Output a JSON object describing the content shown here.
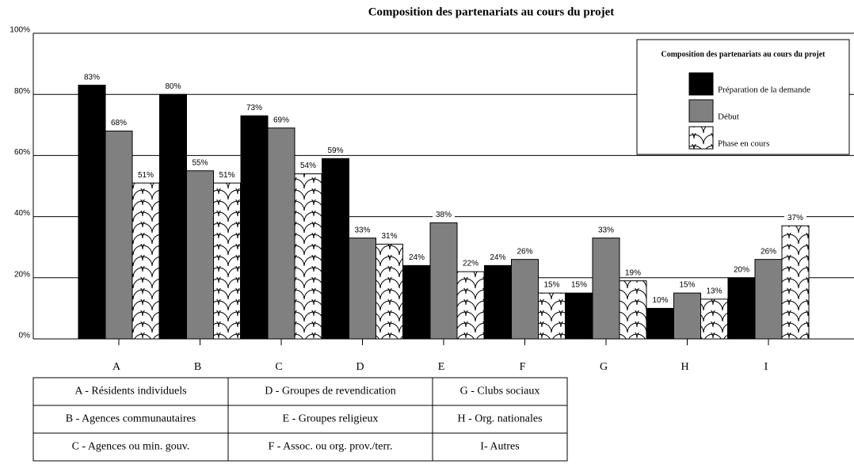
{
  "chart_data": {
    "type": "bar",
    "title": "Composition des partenariats au cours du projet",
    "legend_title": "Composition des partenariats au cours du projet",
    "legend": "upper-right",
    "categories": [
      "A",
      "B",
      "C",
      "D",
      "E",
      "F",
      "G",
      "H",
      "I"
    ],
    "series": [
      {
        "name": "Préparation de la demande",
        "color": "#000000",
        "values": [
          83,
          80,
          73,
          59,
          24,
          24,
          15,
          10,
          20
        ],
        "value_labels": [
          "83%",
          "80%",
          "73%",
          "59%",
          "24%",
          "24%",
          "15%",
          "10%",
          "20%"
        ]
      },
      {
        "name": "Début",
        "color": "#808080",
        "values": [
          68,
          55,
          69,
          33,
          38,
          26,
          33,
          15,
          26
        ],
        "value_labels": [
          "68%",
          "55%",
          "69%",
          "33%",
          "38%",
          "26%",
          "33%",
          "15%",
          "26%"
        ]
      },
      {
        "name": "Phase en cours",
        "color": "#000000",
        "pattern": "scallop",
        "values": [
          51,
          51,
          54,
          31,
          22,
          15,
          19,
          13,
          37
        ],
        "value_labels": [
          "51%",
          "51%",
          "54%",
          "31%",
          "22%",
          "15%",
          "19%",
          "13%",
          "37%"
        ]
      }
    ],
    "ylim": [
      0,
      100
    ],
    "yticks": [
      {
        "value": 0,
        "label": "0%"
      },
      {
        "value": 20,
        "label": "20%"
      },
      {
        "value": 40,
        "label": "40%"
      },
      {
        "value": 60,
        "label": "60%"
      },
      {
        "value": 80,
        "label": "80%"
      },
      {
        "value": 100,
        "label": "100%"
      }
    ],
    "grid": true
  },
  "table": {
    "rows": [
      [
        "A - Résidents individuels",
        "D - Groupes de revendication",
        "G - Clubs sociaux"
      ],
      [
        "B - Agences communautaires",
        "E - Groupes religieux",
        "H - Org. nationales"
      ],
      [
        "C - Agences ou min. gouv.",
        "F - Assoc. ou org. prov./terr.",
        "I- Autres"
      ]
    ]
  }
}
